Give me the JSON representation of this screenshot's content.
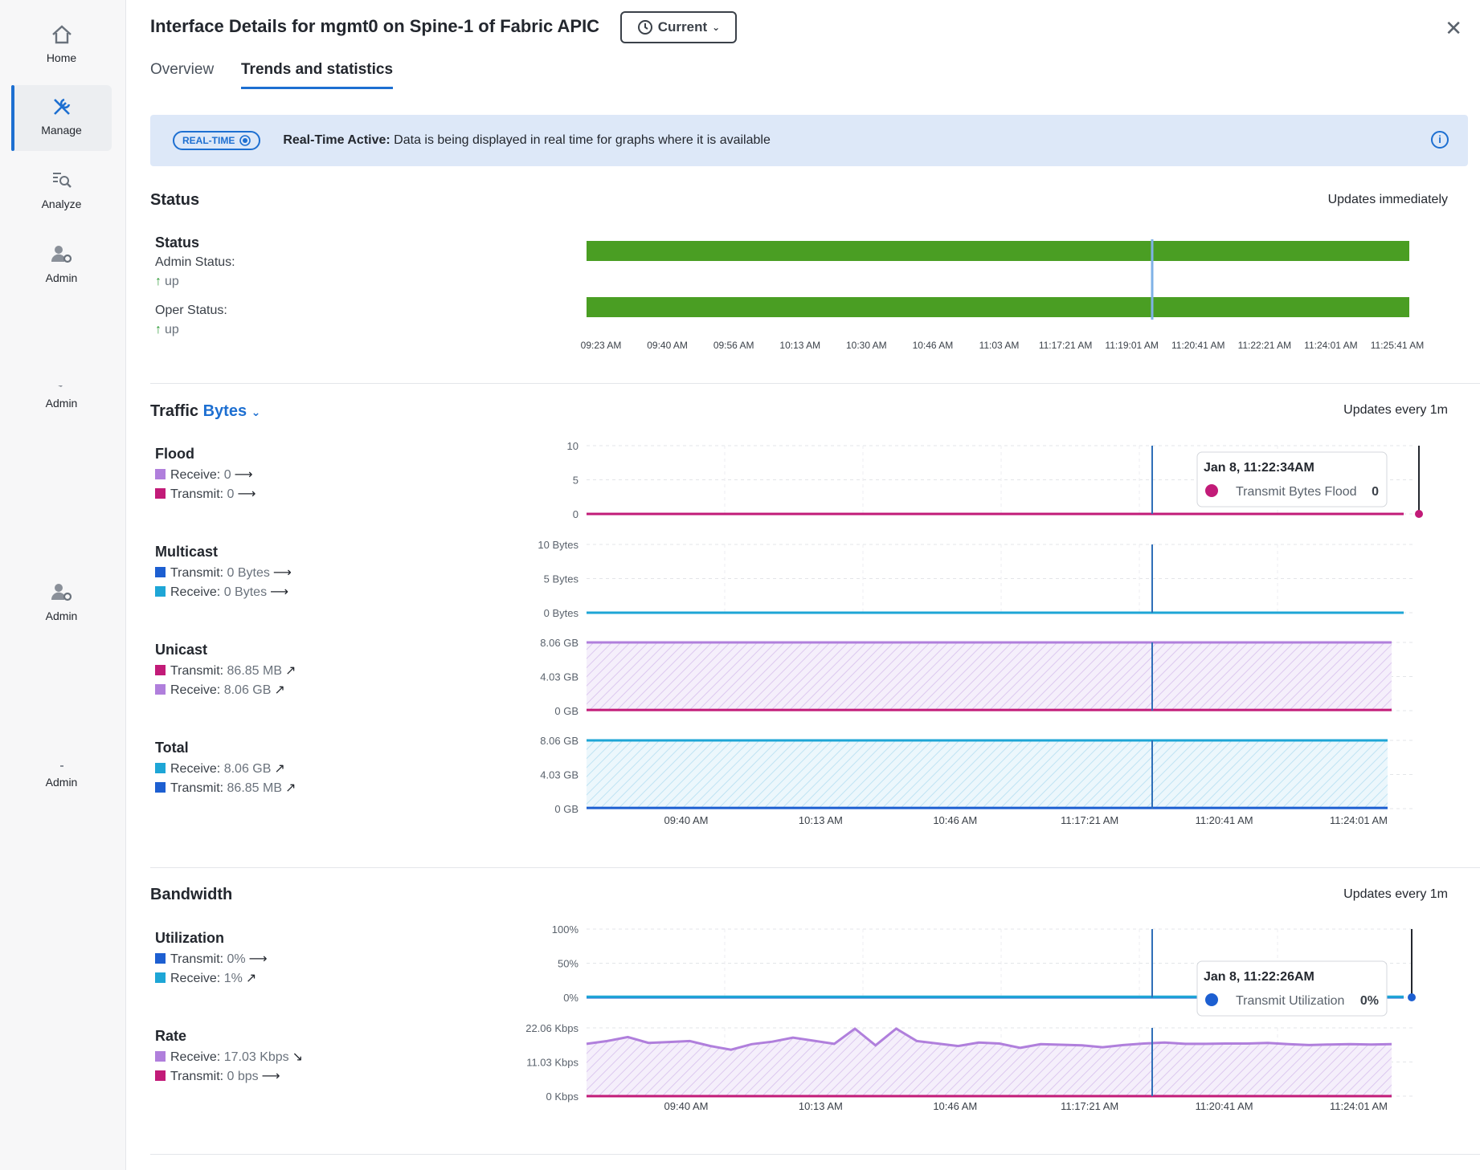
{
  "sidebar": {
    "items": [
      {
        "label": "Home",
        "icon": "home-icon"
      },
      {
        "label": "Manage",
        "icon": "wrench-icon",
        "active": true
      },
      {
        "label": "Analyze",
        "icon": "analyze-icon"
      },
      {
        "label": "Admin",
        "icon": "admin-icon"
      },
      {
        "label": "Admin",
        "icon": "admin-icon"
      },
      {
        "label": "Admin",
        "icon": "admin-icon"
      },
      {
        "label": "Admin",
        "icon": "admin-icon"
      }
    ]
  },
  "header": {
    "title": "Interface Details for mgmt0 on Spine-1 of Fabric APIC",
    "time_button": "Current",
    "tabs": [
      "Overview",
      "Trends and statistics"
    ],
    "active_tab": "Trends and statistics"
  },
  "banner": {
    "badge": "REAL-TIME",
    "bold": "Real-Time Active:",
    "text": " Data is being displayed in real time for graphs where it is available"
  },
  "status": {
    "title": "Status",
    "updates": "Updates immediately",
    "group_title": "Status",
    "admin_label": "Admin Status:",
    "admin_value": "up",
    "oper_label": "Oper Status:",
    "oper_value": "up",
    "ticks": [
      "09:23 AM",
      "09:40 AM",
      "09:56 AM",
      "10:13 AM",
      "10:30 AM",
      "10:46 AM",
      "11:03 AM",
      "11:17:21 AM",
      "11:19:01 AM",
      "11:20:41 AM",
      "11:22:21 AM",
      "11:24:01 AM",
      "11:25:41 AM"
    ],
    "bar_color": "#4a9e23"
  },
  "traffic": {
    "title": "Traffic",
    "unit": "Bytes",
    "updates": "Updates every 1m",
    "flood": {
      "title": "Flood",
      "receive": "Receive:",
      "receive_val": "0",
      "transmit": "Transmit:",
      "transmit_val": "0",
      "yticks": [
        "10",
        "5",
        "0"
      ]
    },
    "multicast": {
      "title": "Multicast",
      "transmit": "Transmit:",
      "transmit_val": "0 Bytes",
      "receive": "Receive:",
      "receive_val": "0 Bytes",
      "yticks": [
        "10 Bytes",
        "5 Bytes",
        "0 Bytes"
      ]
    },
    "unicast": {
      "title": "Unicast",
      "transmit": "Transmit:",
      "transmit_val": "86.85 MB",
      "receive": "Receive:",
      "receive_val": "8.06 GB",
      "yticks": [
        "8.06 GB",
        "4.03 GB",
        "0 GB"
      ]
    },
    "total": {
      "title": "Total",
      "receive": "Receive:",
      "receive_val": "8.06 GB",
      "transmit": "Transmit:",
      "transmit_val": "86.85 MB",
      "yticks": [
        "8.06 GB",
        "4.03 GB",
        "0 GB"
      ]
    },
    "xticks": [
      "09:40 AM",
      "10:13 AM",
      "10:46 AM",
      "11:17:21 AM",
      "11:20:41 AM",
      "11:24:01 AM"
    ],
    "tooltip": {
      "time": "Jan 8, 11:22:34AM",
      "label": "Transmit Bytes Flood",
      "value": "0"
    }
  },
  "bandwidth": {
    "title": "Bandwidth",
    "updates": "Updates every 1m",
    "utilization": {
      "title": "Utilization",
      "transmit": "Transmit:",
      "transmit_val": "0%",
      "receive": "Receive:",
      "receive_val": "1%",
      "yticks": [
        "100%",
        "50%",
        "0%"
      ]
    },
    "rate": {
      "title": "Rate",
      "receive": "Receive:",
      "receive_val": "17.03 Kbps",
      "transmit": "Transmit:",
      "transmit_val": "0 bps",
      "yticks": [
        "22.06 Kbps",
        "11.03 Kbps",
        "0 Kbps"
      ]
    },
    "xticks": [
      "09:40 AM",
      "10:13 AM",
      "10:46 AM",
      "11:17:21 AM",
      "11:20:41 AM",
      "11:24:01 AM"
    ],
    "tooltip": {
      "time": "Jan 8, 11:22:26AM",
      "label": "Transmit Utilization",
      "value": "0%"
    }
  },
  "chart_data": [
    {
      "type": "line",
      "title": "Flood",
      "ylim": [
        0,
        10
      ],
      "series": [
        {
          "name": "Receive",
          "color": "#b07fdc",
          "values": [
            0,
            0,
            0,
            0,
            0,
            0,
            0,
            0,
            0,
            0,
            0,
            0,
            0,
            0,
            0,
            0,
            0,
            0,
            0,
            0,
            0,
            0,
            0,
            0,
            0,
            0,
            0,
            0,
            0,
            0,
            0,
            0,
            0,
            0,
            0,
            0,
            0,
            0,
            0,
            0
          ]
        },
        {
          "name": "Transmit",
          "color": "#c21b78",
          "values": [
            0,
            0,
            0,
            0,
            0,
            0,
            0,
            0,
            0,
            0,
            0,
            0,
            0,
            0,
            0,
            0,
            0,
            0,
            0,
            0,
            0,
            0,
            0,
            0,
            0,
            0,
            0,
            0,
            0,
            0,
            0,
            0,
            0,
            0,
            0,
            0,
            0,
            0,
            0,
            0
          ]
        }
      ]
    },
    {
      "type": "line",
      "title": "Multicast",
      "ylim": [
        0,
        10
      ],
      "series": [
        {
          "name": "Transmit",
          "color": "#1d5fd1",
          "values": [
            0,
            0,
            0,
            0,
            0,
            0,
            0,
            0,
            0,
            0,
            0,
            0,
            0,
            0,
            0,
            0,
            0,
            0,
            0,
            0,
            0,
            0,
            0,
            0,
            0,
            0,
            0,
            0,
            0,
            0,
            0,
            0,
            0,
            0,
            0,
            0,
            0,
            0,
            0,
            0
          ]
        },
        {
          "name": "Receive",
          "color": "#1ea6d6",
          "values": [
            0,
            0,
            0,
            0,
            0,
            0,
            0,
            0,
            0,
            0,
            0,
            0,
            0,
            0,
            0,
            0,
            0,
            0,
            0,
            0,
            0,
            0,
            0,
            0,
            0,
            0,
            0,
            0,
            0,
            0,
            0,
            0,
            0,
            0,
            0,
            0,
            0,
            0,
            0,
            0
          ]
        }
      ]
    },
    {
      "type": "area",
      "title": "Unicast",
      "ylim": [
        0,
        8.06
      ],
      "series": [
        {
          "name": "Transmit",
          "color": "#c21b78",
          "values": [
            0.09,
            0.09,
            0.09,
            0.09,
            0.09,
            0.09,
            0.09,
            0.09,
            0.09,
            0.09,
            0.09,
            0.09,
            0.09,
            0.09,
            0.09,
            0.09,
            0.09,
            0.09,
            0.09,
            0.09,
            0.09,
            0.09,
            0.09,
            0.09,
            0.09,
            0.09,
            0.09,
            0.09,
            0.09,
            0.09,
            0.09,
            0.09,
            0.09,
            0.09,
            0.09,
            0.09,
            0.09,
            0.09,
            0.09,
            0.09
          ]
        },
        {
          "name": "Receive",
          "color": "#b07fdc",
          "values": [
            8.06,
            8.06,
            8.06,
            8.06,
            8.06,
            8.06,
            8.06,
            8.06,
            8.06,
            8.06,
            8.06,
            8.06,
            8.06,
            8.06,
            8.06,
            8.06,
            8.06,
            8.06,
            8.06,
            8.06,
            8.06,
            8.06,
            8.06,
            8.06,
            8.06,
            8.06,
            8.06,
            8.06,
            8.06,
            8.06,
            8.06,
            8.06,
            8.06,
            8.06,
            8.06,
            8.06,
            8.06,
            8.06,
            8.06,
            8.06
          ]
        }
      ]
    },
    {
      "type": "area",
      "title": "Total",
      "ylim": [
        0,
        8.06
      ],
      "series": [
        {
          "name": "Receive",
          "color": "#1ea6d6",
          "values": [
            8.06,
            8.06,
            8.06,
            8.06,
            8.06,
            8.06,
            8.06,
            8.06,
            8.06,
            8.06,
            8.06,
            8.06,
            8.06,
            8.06,
            8.06,
            8.06,
            8.06,
            8.06,
            8.06,
            8.06,
            8.06,
            8.06,
            8.06,
            8.06,
            8.06,
            8.06,
            8.06,
            8.06,
            8.06,
            8.06,
            8.06,
            8.06,
            8.06,
            8.06,
            8.06,
            8.06,
            8.06,
            8.06,
            8.06,
            8.06
          ]
        },
        {
          "name": "Transmit",
          "color": "#1d5fd1",
          "values": [
            0.09,
            0.09,
            0.09,
            0.09,
            0.09,
            0.09,
            0.09,
            0.09,
            0.09,
            0.09,
            0.09,
            0.09,
            0.09,
            0.09,
            0.09,
            0.09,
            0.09,
            0.09,
            0.09,
            0.09,
            0.09,
            0.09,
            0.09,
            0.09,
            0.09,
            0.09,
            0.09,
            0.09,
            0.09,
            0.09,
            0.09,
            0.09,
            0.09,
            0.09,
            0.09,
            0.09,
            0.09,
            0.09,
            0.09,
            0.09
          ]
        }
      ]
    },
    {
      "type": "line",
      "title": "Utilization",
      "ylim": [
        0,
        100
      ],
      "series": [
        {
          "name": "Transmit",
          "color": "#1d5fd1",
          "values": [
            0,
            0,
            0,
            0,
            0,
            0,
            0,
            0,
            0,
            0,
            0,
            0,
            0,
            0,
            0,
            0,
            0,
            0,
            0,
            0,
            0,
            0,
            0,
            0,
            0,
            0,
            0,
            0,
            0,
            0,
            0,
            0,
            0,
            0,
            0,
            0,
            0,
            0,
            0,
            0
          ]
        },
        {
          "name": "Receive",
          "color": "#1ea6d6",
          "values": [
            1,
            1,
            1,
            1,
            1,
            1,
            1,
            1,
            1,
            1,
            1,
            1,
            1,
            1,
            1,
            1,
            1,
            1,
            1,
            1,
            1,
            1,
            1,
            1,
            1,
            1,
            1,
            1,
            1,
            1,
            1,
            1,
            1,
            1,
            1,
            1,
            1,
            1,
            1,
            1
          ]
        }
      ]
    },
    {
      "type": "area",
      "title": "Rate",
      "ylim": [
        0,
        22.06
      ],
      "series": [
        {
          "name": "Receive",
          "color": "#b07fdc",
          "values": [
            16.9,
            17.8,
            19.1,
            17.2,
            17.5,
            17.8,
            16.2,
            15.0,
            16.8,
            17.6,
            18.9,
            17.9,
            16.9,
            21.8,
            16.4,
            21.8,
            17.8,
            17.0,
            16.2,
            17.3,
            17.0,
            15.6,
            16.8,
            16.6,
            16.4,
            15.8,
            16.5,
            17.0,
            17.3,
            16.9,
            16.9,
            17.0,
            17.0,
            17.2,
            16.8,
            16.5,
            16.7,
            16.8,
            16.7,
            16.8
          ]
        },
        {
          "name": "Transmit",
          "color": "#c21b78",
          "values": [
            0,
            0,
            0,
            0,
            0,
            0,
            0,
            0,
            0,
            0,
            0,
            0,
            0,
            0,
            0,
            0,
            0,
            0,
            0,
            0,
            0,
            0,
            0,
            0,
            0,
            0,
            0,
            0,
            0,
            0,
            0,
            0,
            0,
            0,
            0,
            0,
            0,
            0,
            0,
            0
          ]
        }
      ]
    }
  ]
}
